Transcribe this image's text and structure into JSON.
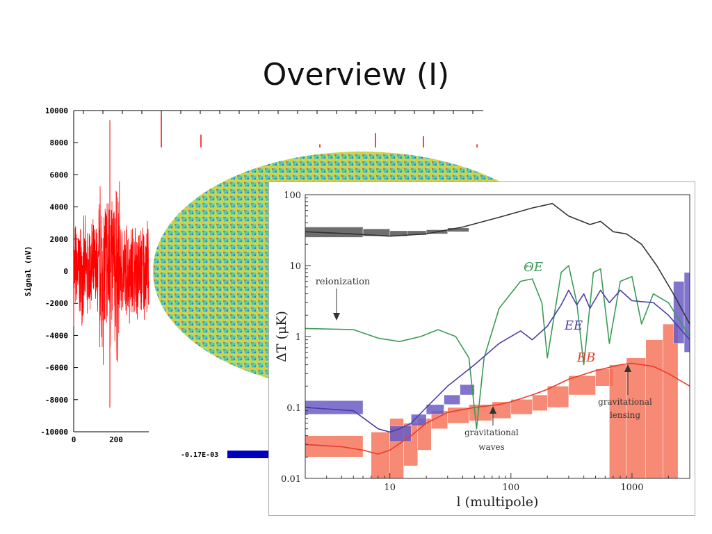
{
  "slide": {
    "title": "Overview (I)"
  },
  "chart_data": [
    {
      "type": "line",
      "ylabel": "Signal (nV)",
      "ylim": [
        -10000,
        10000
      ],
      "y_ticks": [
        "10000",
        "8000",
        "6000",
        "4000",
        "2000",
        "0",
        "-2000",
        "-4000",
        "-6000",
        "-8000",
        "-10000"
      ],
      "x_ticks": [
        "0",
        "200"
      ],
      "colorbar_label": "-0.17E-03",
      "colors": {
        "signal": "#ff0000",
        "colorbar": "#0000c0"
      }
    },
    {
      "type": "line",
      "xlabel": "l (multipole)",
      "ylabel": "ΔT (μK)",
      "x_scale": "log",
      "y_scale": "log",
      "xlim": [
        2,
        3000
      ],
      "ylim": [
        0.01,
        100
      ],
      "x_ticks": [
        "10",
        "100",
        "1000"
      ],
      "y_ticks": [
        "100",
        "10",
        "1",
        "0.1",
        "0.01"
      ],
      "annotations": {
        "reionization": "reionization",
        "te_label": "ΘE",
        "ee_label": "EE",
        "bb_label": "BB",
        "grav_waves_1": "gravitational",
        "grav_waves_2": "waves",
        "grav_lensing_1": "gravitational",
        "grav_lensing_2": "lensing"
      },
      "colors": {
        "TT": "#333333",
        "TE": "#3a9a55",
        "EE": "#4b3fa8",
        "BB": "#ee3a2a",
        "TT_box": "#555555",
        "EE_box": "#6a5cc4",
        "BB_box": "#f56e52"
      },
      "series": [
        {
          "name": "TT",
          "x": [
            2,
            5,
            10,
            20,
            40,
            80,
            150,
            220,
            300,
            450,
            550,
            700,
            900,
            1200,
            1600,
            2200,
            3000
          ],
          "y": [
            30,
            28,
            26,
            28,
            35,
            48,
            65,
            75,
            50,
            38,
            42,
            30,
            28,
            20,
            10,
            4,
            1.5
          ]
        },
        {
          "name": "ΘE",
          "x": [
            2,
            5,
            8,
            12,
            18,
            25,
            35,
            45,
            52,
            60,
            80,
            120,
            150,
            180,
            200,
            260,
            300,
            350,
            400,
            480,
            550,
            650,
            800,
            1000,
            1200,
            1500,
            2000,
            3000
          ],
          "y": [
            1.3,
            1.25,
            0.95,
            0.85,
            1.0,
            1.25,
            1.0,
            0.5,
            0.05,
            0.5,
            2.5,
            6,
            6.5,
            3,
            0.5,
            8,
            10,
            3,
            0.4,
            8,
            9,
            0.8,
            6,
            7,
            1.5,
            4,
            3,
            1
          ]
        },
        {
          "name": "EE",
          "x": [
            2,
            5,
            8,
            10,
            12,
            15,
            20,
            30,
            50,
            80,
            120,
            150,
            200,
            260,
            300,
            350,
            400,
            450,
            550,
            650,
            800,
            1000,
            1500,
            2000,
            3000
          ],
          "y": [
            0.1,
            0.09,
            0.05,
            0.045,
            0.05,
            0.06,
            0.1,
            0.2,
            0.4,
            0.8,
            1.2,
            0.9,
            1.4,
            2.8,
            4.5,
            2.8,
            4,
            2.5,
            4.5,
            3,
            4.5,
            3.2,
            3,
            2,
            0.9
          ]
        },
        {
          "name": "BB",
          "x": [
            2,
            4,
            6,
            8,
            10,
            15,
            20,
            30,
            50,
            80,
            100,
            150,
            200,
            300,
            500,
            800,
            1000,
            1500,
            2000,
            3000
          ],
          "y": [
            0.03,
            0.028,
            0.025,
            0.022,
            0.025,
            0.04,
            0.06,
            0.085,
            0.1,
            0.11,
            0.12,
            0.15,
            0.18,
            0.25,
            0.33,
            0.4,
            0.42,
            0.38,
            0.3,
            0.2
          ]
        }
      ],
      "boxes": {
        "TT": [
          [
            2,
            6,
            25,
            35
          ],
          [
            6,
            10,
            26,
            33
          ],
          [
            10,
            14,
            26,
            31
          ],
          [
            14,
            20,
            27,
            31
          ],
          [
            20,
            30,
            28,
            32
          ],
          [
            30,
            45,
            30,
            34
          ]
        ],
        "EE": [
          [
            2,
            6,
            0.08,
            0.125
          ],
          [
            10,
            15,
            0.033,
            0.055
          ],
          [
            15,
            20,
            0.055,
            0.08
          ],
          [
            20,
            28,
            0.08,
            0.11
          ],
          [
            28,
            38,
            0.11,
            0.15
          ],
          [
            38,
            50,
            0.15,
            0.21
          ],
          [
            2200,
            2700,
            0.8,
            6
          ],
          [
            2700,
            3000,
            0.6,
            8
          ]
        ],
        "BB": [
          [
            2,
            6,
            0.02,
            0.04
          ],
          [
            7,
            10,
            0.01,
            0.045
          ],
          [
            10,
            13,
            0.01,
            0.07
          ],
          [
            13,
            17,
            0.015,
            0.06
          ],
          [
            17,
            22,
            0.025,
            0.07
          ],
          [
            22,
            30,
            0.05,
            0.09
          ],
          [
            30,
            45,
            0.06,
            0.1
          ],
          [
            45,
            70,
            0.065,
            0.11
          ],
          [
            70,
            100,
            0.07,
            0.12
          ],
          [
            100,
            150,
            0.08,
            0.13
          ],
          [
            150,
            200,
            0.09,
            0.15
          ],
          [
            200,
            300,
            0.1,
            0.2
          ],
          [
            300,
            500,
            0.15,
            0.28
          ],
          [
            500,
            700,
            0.2,
            0.35
          ],
          [
            650,
            900,
            0.01,
            0.4
          ],
          [
            900,
            1300,
            0.01,
            0.5
          ],
          [
            1300,
            1800,
            0.01,
            0.9
          ],
          [
            1800,
            2400,
            0.01,
            1.5
          ]
        ]
      }
    }
  ]
}
